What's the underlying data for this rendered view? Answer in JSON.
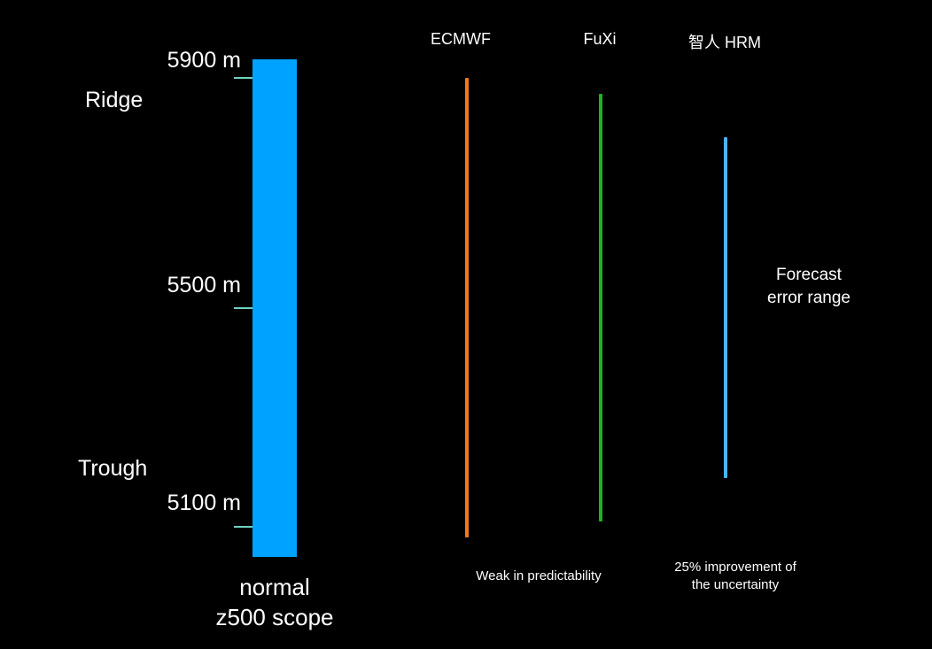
{
  "axis": {
    "labels": [
      "5900 m",
      "5500 m",
      "5100 m"
    ],
    "ridge": "Ridge",
    "trough": "Trough",
    "bar_caption_line1": "normal",
    "bar_caption_line2": "z500 scope"
  },
  "models": [
    {
      "name": "ECMWF",
      "color": "#f07a1e"
    },
    {
      "name": "FuXi",
      "color": "#22b022"
    },
    {
      "name": "智人 HRM",
      "color": "#4ab4f0"
    }
  ],
  "notes": {
    "error_range_line1": "Forecast",
    "error_range_line2": "error range",
    "ecmwf_note": "Weak in predictability",
    "hrm_note_line1": "25% improvement of",
    "hrm_note_line2": "the uncertainty"
  },
  "colors": {
    "bar": "#00a2ff",
    "tick": "#6fd1c2"
  }
}
